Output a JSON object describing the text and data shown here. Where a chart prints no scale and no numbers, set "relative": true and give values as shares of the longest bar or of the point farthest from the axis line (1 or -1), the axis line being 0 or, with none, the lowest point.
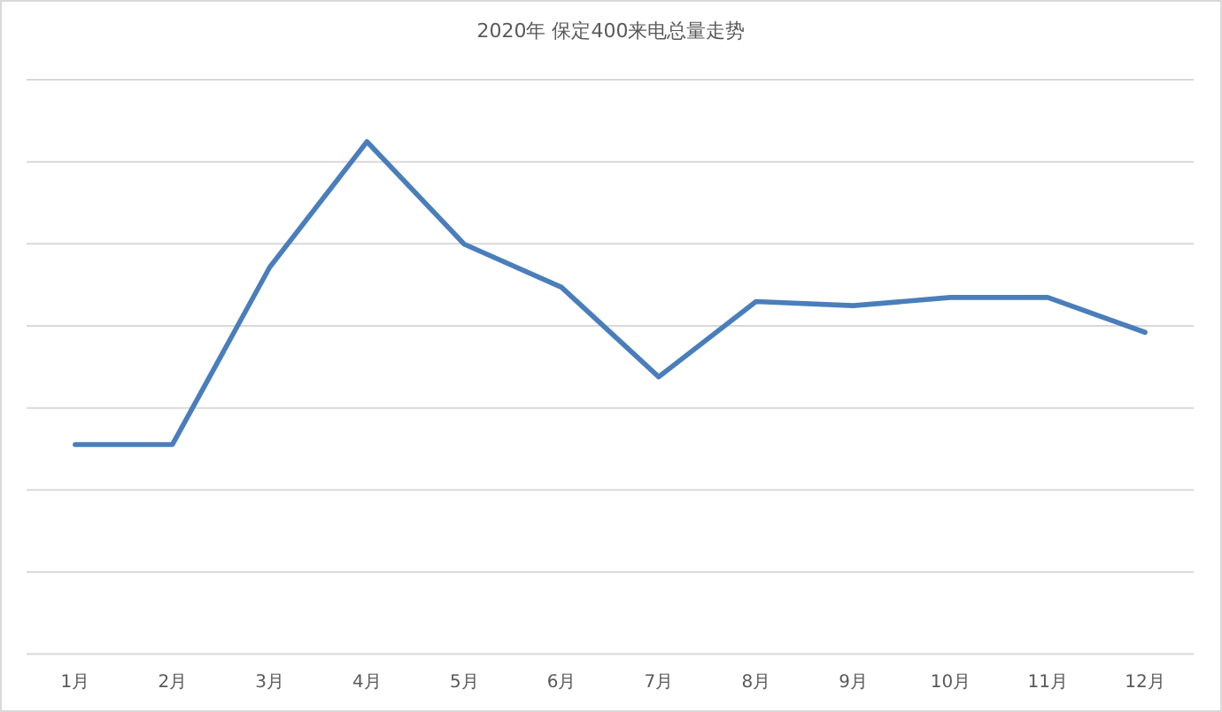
{
  "chart_data": {
    "type": "line",
    "title": "2020年 保定400来电总量走势",
    "relative": true,
    "grid": "y",
    "marker": "none",
    "line_style": "solid",
    "categories": [
      "1月",
      "2月",
      "3月",
      "4月",
      "5月",
      "6月",
      "7月",
      "8月",
      "9月",
      "10月",
      "11月",
      "12月"
    ],
    "series": [
      {
        "color": "#4a7ebb",
        "values": [
          0.409,
          0.409,
          0.755,
          1,
          0.8,
          0.716,
          0.541,
          0.688,
          0.68,
          0.696,
          0.696,
          0.628
        ]
      }
    ]
  }
}
